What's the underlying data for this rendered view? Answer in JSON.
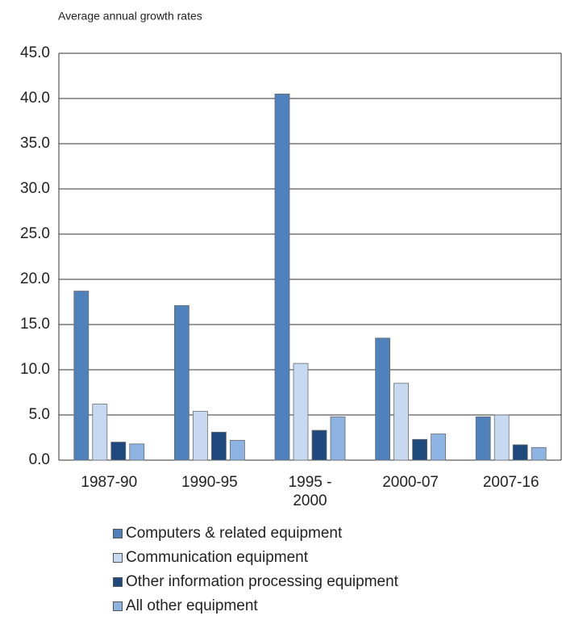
{
  "chart_data": {
    "type": "bar",
    "title": "Average annual growth rates",
    "categories": [
      "1987-90",
      "1990-95",
      "1995 - 2000",
      "2000-07",
      "2007-16"
    ],
    "series": [
      {
        "name": "Computers & related equipment",
        "color": "#4f81bd",
        "values": [
          18.7,
          17.1,
          40.5,
          13.5,
          4.8
        ]
      },
      {
        "name": "Communication equipment",
        "color": "#c6d9f1",
        "values": [
          6.2,
          5.4,
          10.7,
          8.5,
          5.0
        ]
      },
      {
        "name": "Other information processing equipment",
        "color": "#1f497d",
        "values": [
          2.0,
          3.1,
          3.3,
          2.3,
          1.7
        ]
      },
      {
        "name": "All other equipment",
        "color": "#8db3e2",
        "values": [
          1.8,
          2.2,
          4.8,
          2.9,
          1.4
        ]
      }
    ],
    "ylim": [
      0,
      45
    ],
    "yticks": [
      {
        "value": 0,
        "label": "0.0"
      },
      {
        "value": 5,
        "label": "5.0"
      },
      {
        "value": 10,
        "label": "10.0"
      },
      {
        "value": 15,
        "label": "15.0"
      },
      {
        "value": 20,
        "label": "20.0"
      },
      {
        "value": 25,
        "label": "25.0"
      },
      {
        "value": 30,
        "label": "30.0"
      },
      {
        "value": 35,
        "label": "35.0"
      },
      {
        "value": 40,
        "label": "40.0"
      },
      {
        "value": 45,
        "label": "45.0"
      }
    ],
    "grid": true
  }
}
